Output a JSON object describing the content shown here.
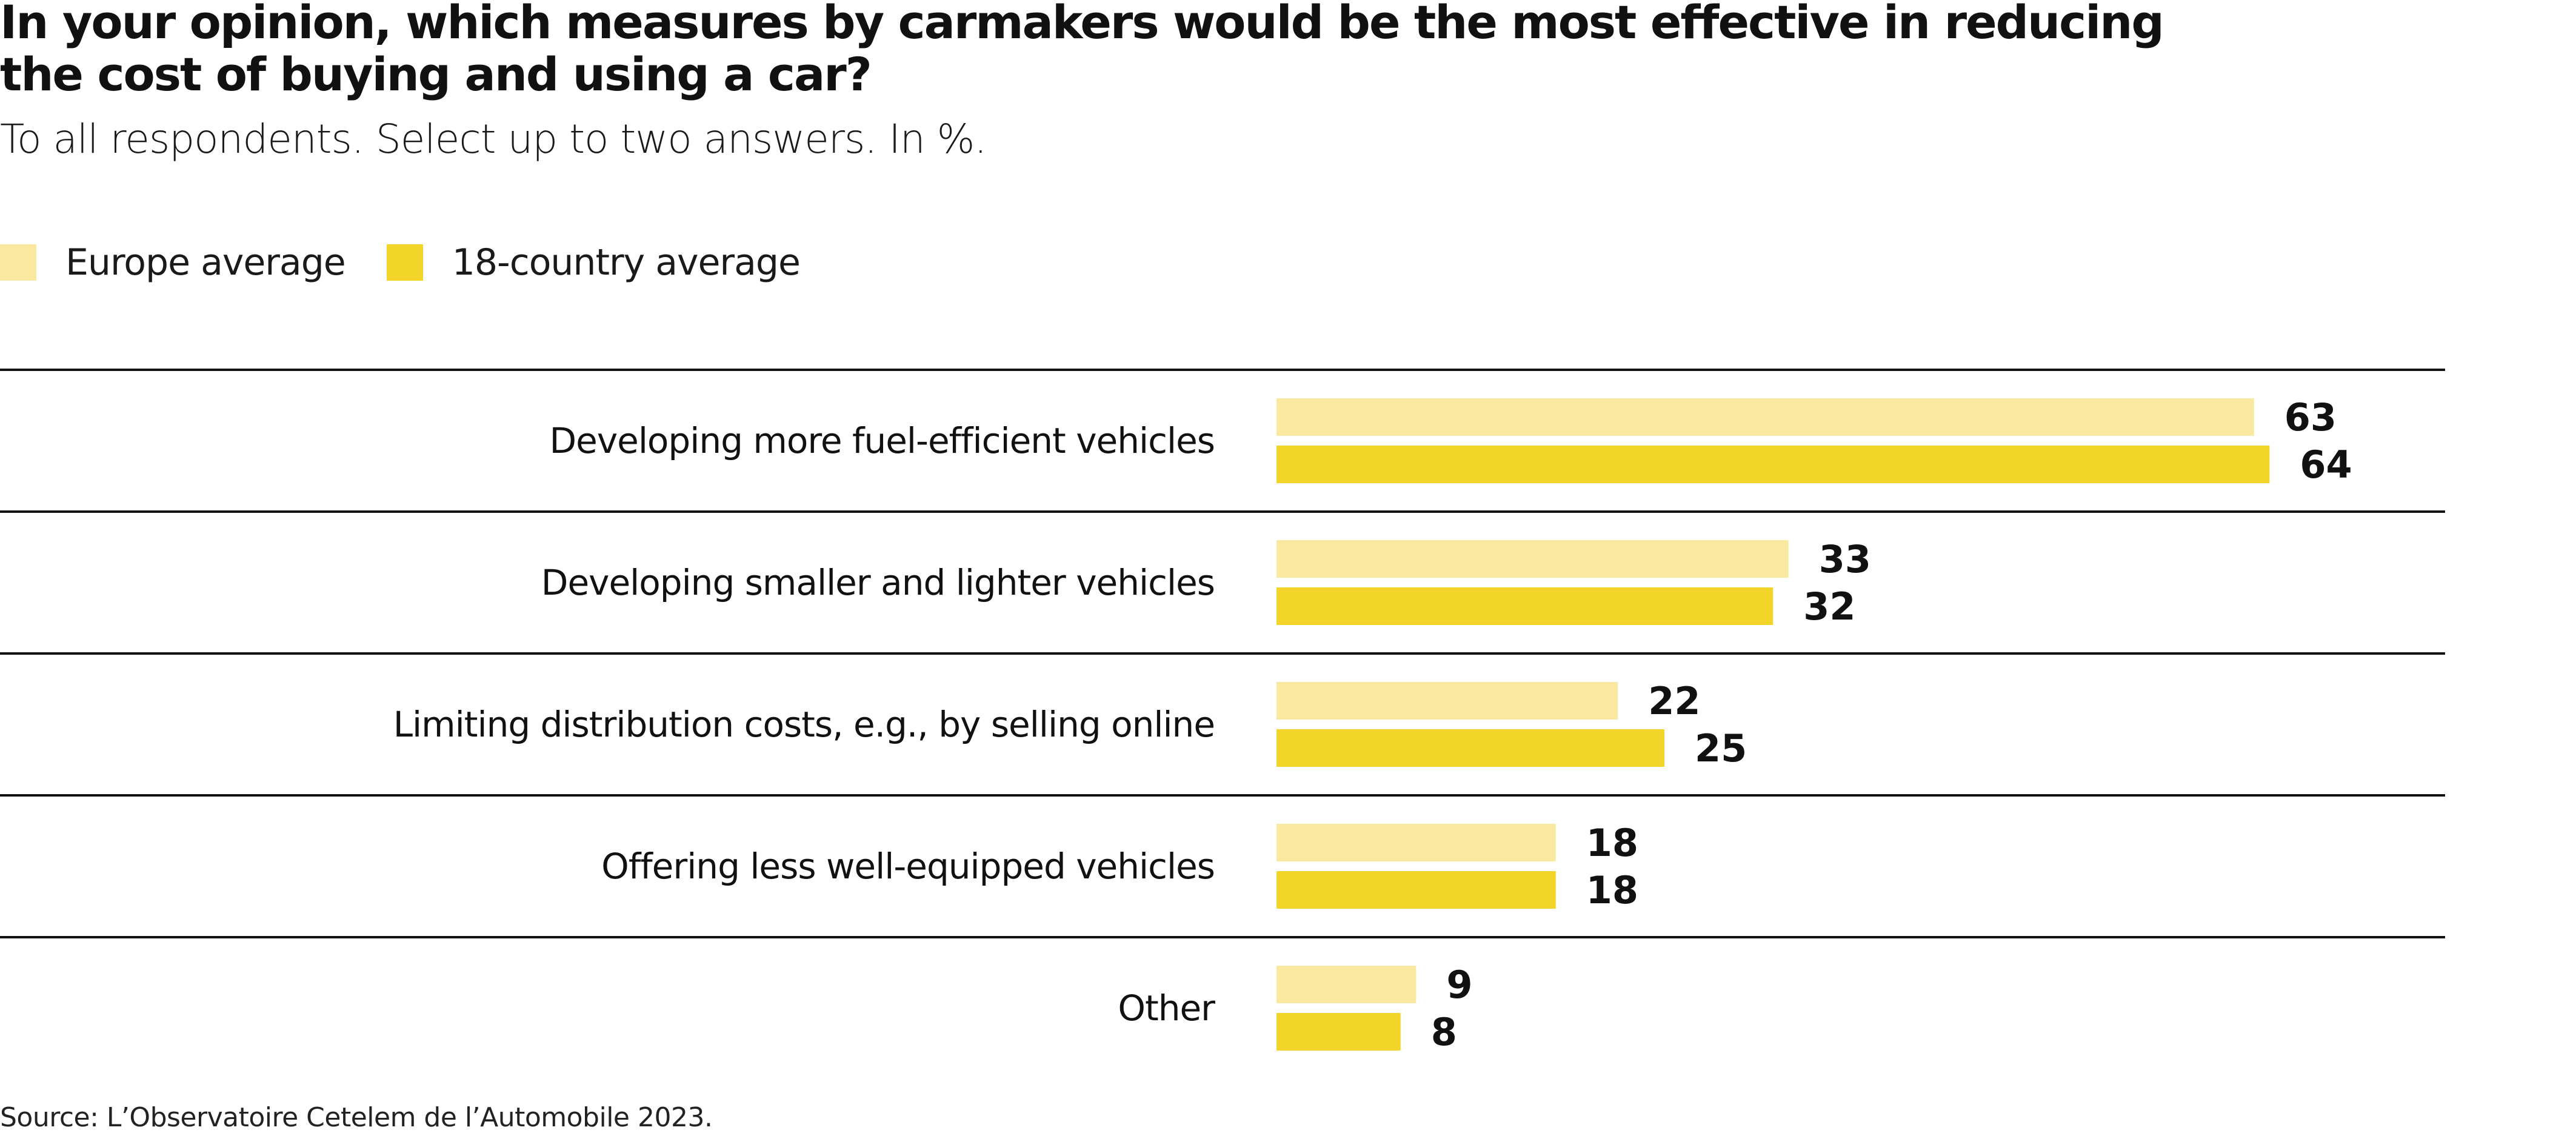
{
  "header": {
    "title": "In your opinion, which measures by carmakers would be the most effective in reducing the cost of buying and using a car?",
    "subtitle": "To all respondents. Select up to two answers. In %."
  },
  "legend": [
    {
      "label": "Europe average",
      "color": "#FAE8A0"
    },
    {
      "label": "18-country average",
      "color": "#F3D52A"
    }
  ],
  "footer": {
    "source": "Source: L’Observatoire Cetelem de l’Automobile 2023."
  },
  "chart_data": {
    "type": "bar",
    "orientation": "horizontal",
    "title": "In your opinion, which measures by carmakers would be the most effective in reducing the cost of buying and using a car?",
    "subtitle": "To all respondents. Select up to two answers. In %.",
    "xlabel": "",
    "ylabel": "",
    "xlim": [
      0,
      70
    ],
    "grid": false,
    "legend_position": "top-left",
    "categories": [
      "Developing more fuel-efficient vehicles",
      "Developing smaller and lighter vehicles",
      "Limiting distribution costs, e.g., by selling online",
      "Offering less well-equipped vehicles",
      "Other"
    ],
    "series": [
      {
        "name": "Europe average",
        "color": "#FAE8A0",
        "values": [
          63,
          33,
          22,
          18,
          9
        ]
      },
      {
        "name": "18-country average",
        "color": "#F3D52A",
        "values": [
          64,
          32,
          25,
          18,
          8
        ]
      }
    ],
    "source": "Source: L’Observatoire Cetelem de l’Automobile 2023."
  }
}
